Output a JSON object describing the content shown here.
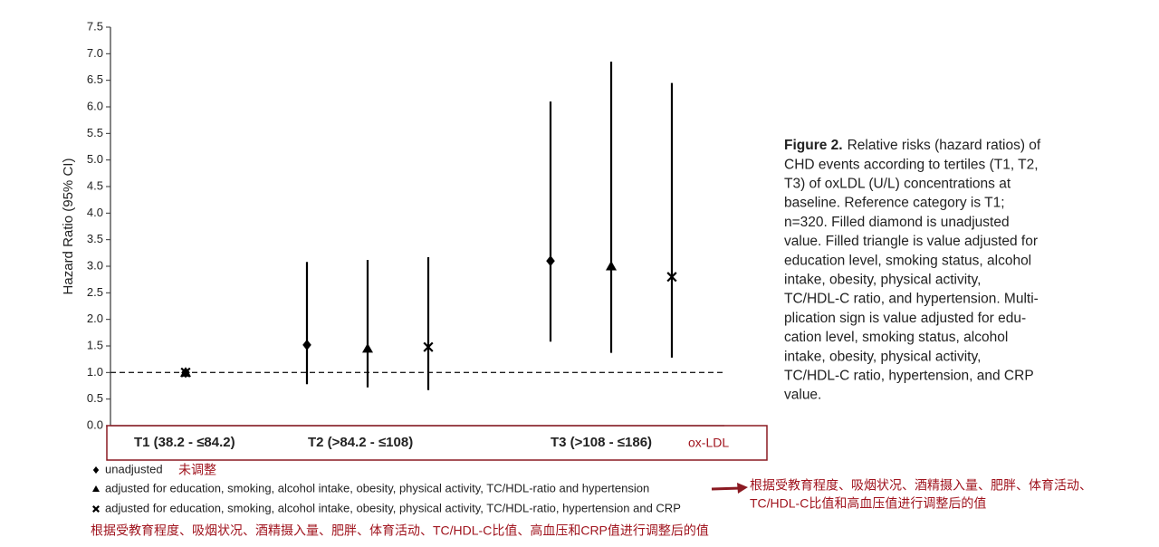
{
  "chart_data": {
    "type": "errorbar",
    "y_label": "Hazard Ratio (95% CI)",
    "x_label": "ox-LDL",
    "categories": [
      "T1 (38.2 - ≤84.2)",
      "T2 (>84.2 - ≤108)",
      "T3 (>108 - ≤186)"
    ],
    "ylim": [
      0,
      7.5
    ],
    "yticks": [
      {
        "value": 0,
        "label": "0.0"
      },
      0.5,
      {
        "value": 1,
        "label": "1.0"
      },
      1.5,
      {
        "value": 2,
        "label": "2.0"
      },
      2.5,
      {
        "value": 3,
        "label": "3.0"
      },
      3.5,
      {
        "value": 4,
        "label": "4.0"
      },
      4.5,
      {
        "value": 5,
        "label": "5.0"
      },
      5.5,
      {
        "value": 6,
        "label": "6.0"
      },
      6.5,
      {
        "value": 7,
        "label": "7.0"
      },
      7.5
    ],
    "reference_line": 1.0,
    "series": [
      {
        "name": "unadjusted",
        "marker": "diamond",
        "color": "#000000",
        "values": [
          1.0,
          1.52,
          3.1
        ],
        "lower": [
          null,
          0.78,
          1.58
        ],
        "upper": [
          null,
          3.08,
          6.1
        ],
        "annotation": "未调整"
      },
      {
        "name": "adjusted for education, smoking, alcohol intake, obesity, physical activity, TC/HDL-ratio and hypertension",
        "marker": "triangle",
        "color": "#000000",
        "values": [
          1.0,
          1.45,
          3.0
        ],
        "lower": [
          null,
          0.72,
          1.37
        ],
        "upper": [
          null,
          3.12,
          6.85
        ],
        "annotation": [
          "根据受教育程度、吸烟状况、酒精摄入量、肥胖、体育活动、",
          "TC/HDL-C比值和高血压值进行调整后的值"
        ]
      },
      {
        "name": "adjusted for education, smoking, alcohol intake, obesity, physical activity, TC/HDL-ratio, hypertension and CRP",
        "marker": "cross",
        "color": "#000000",
        "values": [
          1.0,
          1.48,
          2.8
        ],
        "lower": [
          null,
          0.67,
          1.28
        ],
        "upper": [
          null,
          3.17,
          6.45
        ],
        "annotation": "根据受教育程度、吸烟状况、酒精摄入量、肥胖、体育活动、TC/HDL-C比值、高血压和CRP值进行调整后的值"
      }
    ],
    "caption_label": "Figure 2.",
    "caption_lines": [
      "Relative risks (hazard ratios) of",
      "CHD events according to tertiles (T1, T2,",
      "T3) of oxLDL (U/L) concentrations at",
      "baseline. Reference category is T1;",
      "n=320. Filled diamond is unadjusted",
      "value. Filled triangle is value adjusted for",
      "education level, smoking status, alcohol",
      "intake, obesity, physical activity,",
      "TC/HDL-C ratio, and hypertension. Multi-",
      "plication sign is value adjusted for edu-",
      "cation level, smoking status, alcohol",
      "intake, obesity, physical activity,",
      "TC/HDL-C ratio, hypertension, and CRP",
      "value."
    ]
  }
}
